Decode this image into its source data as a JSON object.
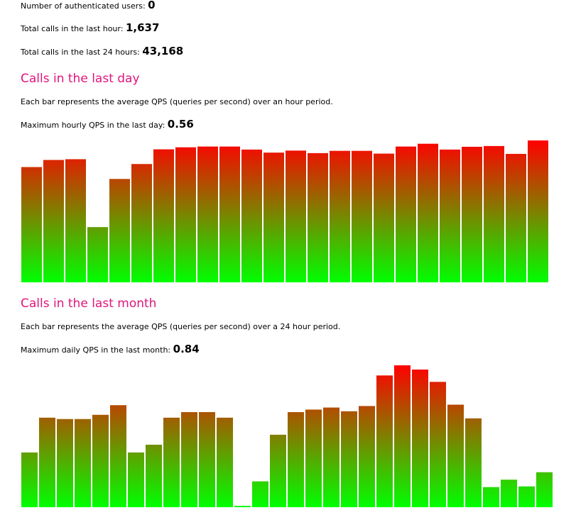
{
  "stats": {
    "auth_users_label": "Number of authenticated users:",
    "auth_users_value": "0",
    "hour_calls_label": "Total calls in the last hour:",
    "hour_calls_value": "1,637",
    "day_calls_label": "Total calls in the last 24 hours:",
    "day_calls_value": "43,168"
  },
  "daily": {
    "title": "Calls in the last day",
    "description": "Each bar represents the average QPS (queries per second) over an hour period.",
    "max_label": "Maximum hourly QPS in the last day:",
    "max_value": "0.56"
  },
  "monthly": {
    "title": "Calls in the last month",
    "description": "Each bar represents the average QPS (queries per second) over a 24 hour period.",
    "max_label": "Maximum daily QPS in the last month:",
    "max_value": "0.84"
  },
  "colors": {
    "title": "#e0157c",
    "bar_low": "#00ff00",
    "bar_high": "#ff0000"
  },
  "chart_data": [
    {
      "type": "bar",
      "title": "Calls in the last day",
      "ylim": [
        0,
        0.56
      ],
      "grid": false,
      "values": [
        0.455,
        0.483,
        0.486,
        0.218,
        0.408,
        0.467,
        0.525,
        0.533,
        0.536,
        0.536,
        0.524,
        0.512,
        0.52,
        0.51,
        0.519,
        0.519,
        0.508,
        0.536,
        0.547,
        0.524,
        0.535,
        0.538,
        0.507,
        0.56
      ]
    },
    {
      "type": "bar",
      "title": "Calls in the last month",
      "ylim": [
        0,
        0.84
      ],
      "grid": false,
      "values": [
        0.324,
        0.53,
        0.522,
        0.522,
        0.547,
        0.604,
        0.324,
        0.37,
        0.53,
        0.563,
        0.563,
        0.53,
        0.008,
        0.153,
        0.429,
        0.563,
        0.578,
        0.59,
        0.568,
        0.599,
        0.78,
        0.84,
        0.815,
        0.742,
        0.607,
        0.526,
        0.119,
        0.163,
        0.123,
        0.207
      ]
    }
  ]
}
